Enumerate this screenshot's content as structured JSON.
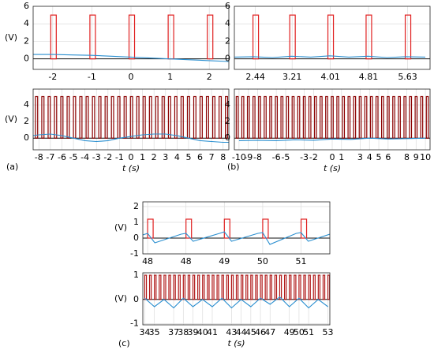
{
  "chart_data": [
    {
      "type": "line",
      "ylabel": "(V)",
      "xlim": [
        -2.5,
        2.5
      ],
      "ylim": [
        -1.2,
        6
      ],
      "xticks": [
        -2,
        -1,
        0,
        1,
        2
      ],
      "yticks": [
        0,
        2,
        4,
        6
      ],
      "grid": true,
      "pulses": {
        "color": "#e02020",
        "height": 5,
        "x": [
          -2.05,
          -1.05,
          -0.05,
          0.95,
          1.95
        ]
      },
      "series": [
        {
          "color": "#2a8fd0",
          "x": [
            -2.5,
            -2,
            -1.5,
            -1,
            -0.5,
            0,
            0.5,
            1,
            1.5,
            2,
            2.5
          ],
          "values": [
            0.5,
            0.5,
            0.45,
            0.4,
            0.3,
            0.2,
            0.1,
            0,
            -0.1,
            -0.2,
            -0.3
          ]
        }
      ]
    },
    {
      "type": "line",
      "ylabel": "(V)",
      "xlabel": "t (s)",
      "panel": "(a)",
      "xlim": [
        -8.5,
        8.5
      ],
      "ylim": [
        -1.4,
        5.9
      ],
      "xticks": [
        -8,
        -7,
        -6,
        -5,
        -4,
        -3,
        -2,
        -1,
        0,
        1,
        2,
        3,
        4,
        5,
        6,
        7,
        8
      ],
      "yticks": [
        0,
        2,
        4
      ],
      "grid": true,
      "pulses": {
        "color": "#8b0000",
        "height": 5,
        "x": [
          -8.3,
          -7.75,
          -7.2,
          -6.65,
          -6.1,
          -5.55,
          -5,
          -4.45,
          -3.9,
          -3.35,
          -2.8,
          -2.25,
          -1.7,
          -1.15,
          -0.6,
          -0.05,
          0.5,
          1.05,
          1.6,
          2.15,
          2.7,
          3.25,
          3.8,
          4.35,
          4.9,
          5.45,
          6,
          6.55,
          7.1,
          7.65,
          8.2
        ]
      },
      "series": [
        {
          "color": "#2a8fd0",
          "x": [
            -8.5,
            -8,
            -7,
            -6,
            -5,
            -4,
            -3,
            -2,
            -1,
            0,
            1,
            2,
            3,
            4,
            5,
            6,
            7,
            8,
            8.5
          ],
          "values": [
            0.3,
            0.4,
            0.5,
            0.3,
            0,
            -0.3,
            -0.4,
            -0.3,
            0,
            0.2,
            0.4,
            0.5,
            0.5,
            0.3,
            0,
            -0.3,
            -0.4,
            -0.5,
            -0.5
          ]
        }
      ]
    },
    {
      "type": "line",
      "xlim": [
        2.0,
        6.1
      ],
      "ylim": [
        -1.2,
        6
      ],
      "xticks": [
        2.44,
        3.21,
        4.01,
        4.81,
        5.63
      ],
      "yticks": [
        0,
        2,
        4,
        6
      ],
      "grid": true,
      "pulses": {
        "color": "#e02020",
        "height": 5,
        "x": [
          2.39,
          3.16,
          3.96,
          4.76,
          5.58
        ]
      },
      "series": [
        {
          "color": "#2a8fd0",
          "x": [
            2.0,
            2.4,
            2.8,
            3.2,
            3.6,
            4.0,
            4.4,
            4.8,
            5.2,
            5.6,
            6.0
          ],
          "values": [
            0.2,
            0.25,
            0.15,
            0.3,
            0.2,
            0.35,
            0.2,
            0.3,
            0.15,
            0.25,
            0.2
          ]
        }
      ]
    },
    {
      "type": "line",
      "xlabel": "t (s)",
      "panel": "(b)",
      "xlim": [
        -10.5,
        10.5
      ],
      "ylim": [
        -1.4,
        5.9
      ],
      "xticks": [
        -10,
        -9,
        -8,
        -6,
        -5,
        -3,
        -2,
        0,
        1,
        3,
        4,
        5,
        6,
        8,
        9,
        10
      ],
      "yticks": [
        0,
        2,
        4
      ],
      "grid": true,
      "pulses": {
        "color": "#8b0000",
        "height": 5,
        "x": [
          -10.3,
          -9.7,
          -9.1,
          -8.5,
          -7.9,
          -7.3,
          -6.7,
          -6.1,
          -5.5,
          -4.9,
          -4.3,
          -3.7,
          -3.1,
          -2.5,
          -1.9,
          -1.3,
          -0.7,
          -0.1,
          0.5,
          1.1,
          1.7,
          2.3,
          2.9,
          3.5,
          4.1,
          4.7,
          5.3,
          5.9,
          6.5,
          7.1,
          7.7,
          8.3,
          8.9,
          9.5,
          10.1
        ]
      },
      "series": [
        {
          "color": "#2a8fd0",
          "x": [
            -10,
            -8,
            -6,
            -4,
            -2,
            0,
            2,
            4,
            6,
            8,
            10
          ],
          "values": [
            -0.3,
            -0.25,
            -0.3,
            -0.2,
            -0.25,
            -0.1,
            -0.15,
            0,
            -0.1,
            -0.05,
            0
          ]
        }
      ]
    },
    {
      "type": "line",
      "ylabel": "(V)",
      "xlim": [
        47.4,
        51.3
      ],
      "ylim": [
        -1,
        2.3
      ],
      "xticks": [
        {
          "value": 47.5,
          "label": "48"
        },
        {
          "value": 48.3,
          "label": "48"
        },
        {
          "value": 49.1,
          "label": "49"
        },
        {
          "value": 49.9,
          "label": "50"
        },
        {
          "value": 50.7,
          "label": "51"
        }
      ],
      "yticks": [
        -1,
        0,
        1,
        2
      ],
      "grid": true,
      "pulses": {
        "color": "#e02020",
        "height": 1.2,
        "x": [
          47.5,
          48.3,
          49.1,
          49.9,
          50.7
        ]
      },
      "series": [
        {
          "color": "#2a8fd0",
          "x": [
            47.4,
            47.5,
            47.65,
            48.2,
            48.3,
            48.45,
            49.0,
            49.1,
            49.25,
            49.8,
            49.9,
            50.05,
            50.6,
            50.7,
            50.85,
            51.3
          ],
          "values": [
            0.2,
            0.3,
            -0.3,
            0.25,
            0.3,
            -0.2,
            0.3,
            0.4,
            -0.2,
            0.3,
            0.35,
            -0.4,
            0.3,
            0.35,
            -0.2,
            0.25
          ]
        }
      ]
    },
    {
      "type": "line",
      "ylabel": "(V)",
      "xlabel": "t (s)",
      "panel": "(c)",
      "xlim": [
        33.8,
        53.2
      ],
      "ylim": [
        -1.05,
        1.1
      ],
      "xticks": [
        34,
        35,
        37,
        38,
        39,
        40,
        41,
        43,
        44,
        45,
        46,
        47,
        49,
        50,
        51,
        53
      ],
      "yticks": [
        -1,
        0,
        1
      ],
      "grid": true,
      "pulses": {
        "color": "#b01818",
        "height": 1,
        "x": [
          34,
          34.5,
          35,
          35.5,
          36,
          36.5,
          37,
          37.5,
          38,
          38.5,
          39,
          39.5,
          40,
          40.5,
          41,
          41.5,
          42,
          42.5,
          43,
          43.5,
          44,
          44.5,
          45,
          45.5,
          46,
          46.5,
          47,
          47.5,
          48,
          48.5,
          49,
          49.5,
          50,
          50.5,
          51,
          51.5,
          52,
          52.5,
          53
        ]
      },
      "series": [
        {
          "color": "#2a8fd0",
          "x": [
            34,
            35,
            36,
            37,
            38,
            39,
            40,
            41,
            42,
            43,
            44,
            45,
            46,
            47,
            48,
            49,
            50,
            51,
            52,
            53
          ],
          "values": [
            0.05,
            -0.3,
            0,
            -0.35,
            0.05,
            -0.3,
            0,
            -0.3,
            0.05,
            -0.35,
            0,
            -0.3,
            0.05,
            -0.2,
            0.1,
            -0.3,
            0.05,
            -0.35,
            0,
            -0.3
          ]
        }
      ]
    }
  ]
}
